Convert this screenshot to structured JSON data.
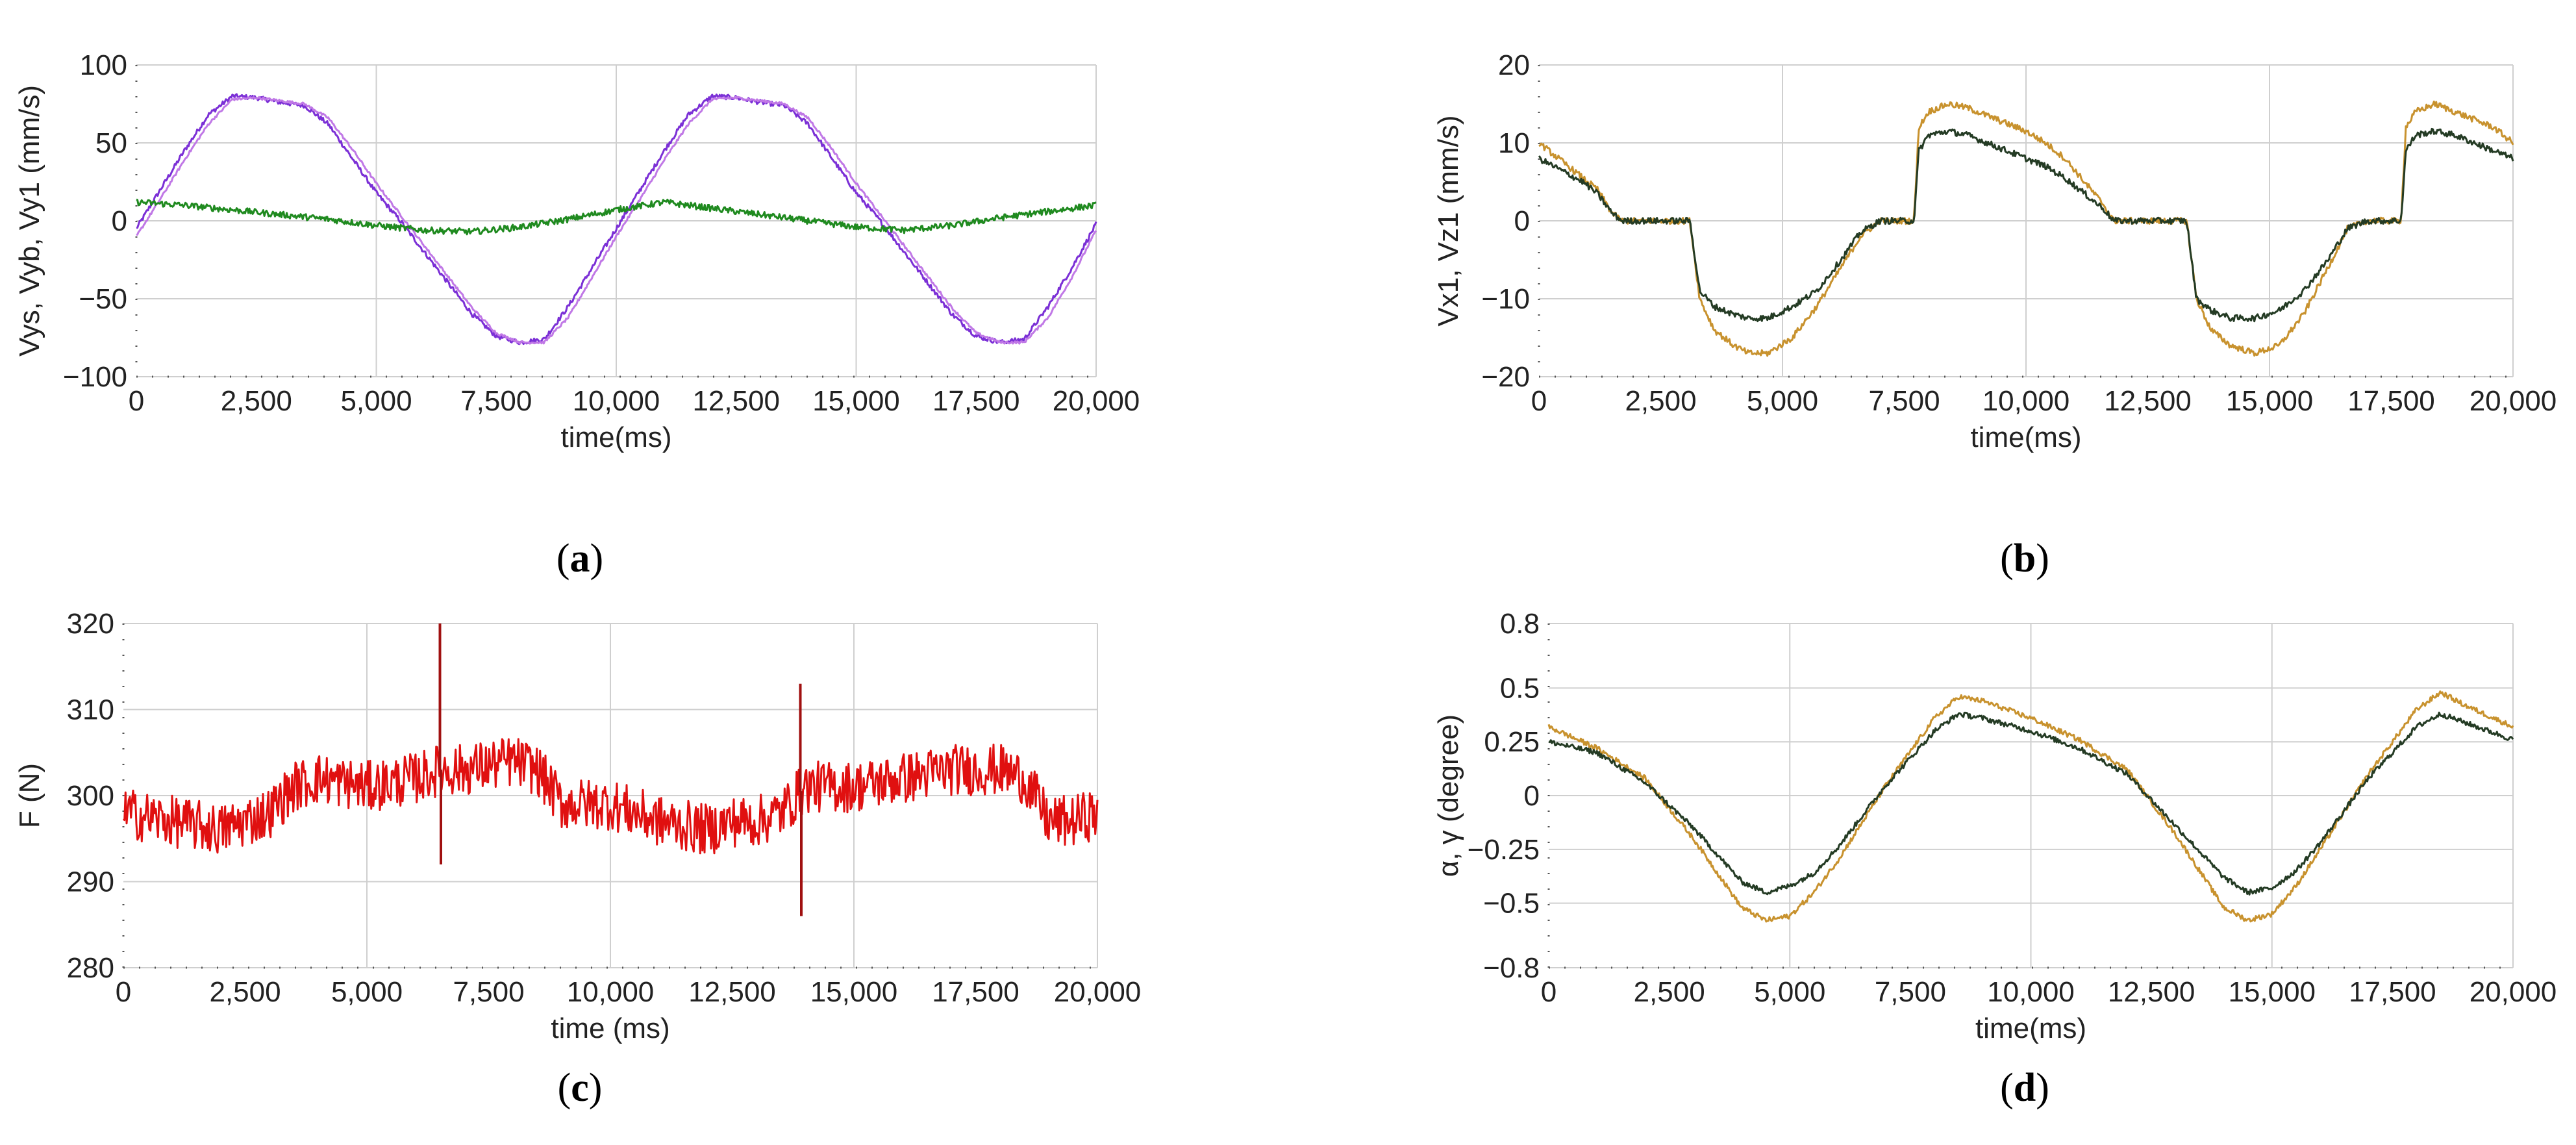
{
  "chart_data": [
    {
      "panel": "(a)",
      "panel_letter": "a",
      "type": "line",
      "xlabel": "time(ms)",
      "ylabel": "Vys, Vyb, Vy1 (mm/s)",
      "xlim": [
        0,
        20000
      ],
      "ylim": [
        -100,
        100
      ],
      "xticks": [
        0,
        2500,
        5000,
        7500,
        10000,
        12500,
        15000,
        17500,
        20000
      ],
      "xtick_labels": [
        "0",
        "2,500",
        "5,000",
        "7,500",
        "10,000",
        "12,500",
        "15,000",
        "17,500",
        "20,000"
      ],
      "yticks": [
        -100,
        -50,
        0,
        50,
        100
      ],
      "ytick_labels": [
        "−100",
        "−50",
        "0",
        "50",
        "100"
      ],
      "grid": true,
      "series": [
        {
          "color": "#7b2fd6",
          "noise": 1.5,
          "x": [
            0,
            500,
            1000,
            1500,
            2000,
            2500,
            3000,
            3500,
            4000,
            4500,
            5000,
            5500,
            6000,
            6500,
            7000,
            7500,
            8000,
            8500,
            9000,
            9500,
            10000,
            10500,
            11000,
            11500,
            12000,
            12500,
            13000,
            13500,
            14000,
            14500,
            15000,
            15500,
            16000,
            16500,
            17000,
            17500,
            18000,
            18500,
            19000,
            19500,
            20000
          ],
          "y": [
            -5,
            20,
            45,
            68,
            80,
            79,
            76,
            74,
            62,
            40,
            18,
            0,
            -20,
            -40,
            -60,
            -74,
            -78,
            -76,
            -55,
            -30,
            -5,
            20,
            45,
            68,
            80,
            79,
            76,
            74,
            62,
            40,
            18,
            0,
            -20,
            -40,
            -60,
            -74,
            -78,
            -76,
            -55,
            -30,
            -2
          ]
        },
        {
          "color": "#c078e6",
          "noise": 0.8,
          "x": [
            0,
            500,
            1000,
            1500,
            2000,
            2500,
            3000,
            3500,
            4000,
            4500,
            5000,
            5500,
            6000,
            6500,
            7000,
            7500,
            8000,
            8500,
            9000,
            9500,
            10000,
            10500,
            11000,
            11500,
            12000,
            12500,
            13000,
            13500,
            14000,
            14500,
            15000,
            15500,
            16000,
            16500,
            17000,
            17500,
            18000,
            18500,
            19000,
            19500,
            20000
          ],
          "y": [
            -10,
            14,
            39,
            62,
            78,
            79,
            77,
            75,
            66,
            46,
            24,
            4,
            -16,
            -36,
            -56,
            -72,
            -78,
            -78,
            -62,
            -36,
            -10,
            14,
            39,
            62,
            78,
            79,
            77,
            75,
            66,
            46,
            24,
            4,
            -16,
            -36,
            -56,
            -72,
            -78,
            -78,
            -62,
            -36,
            -6
          ]
        },
        {
          "color": "#1f8a1f",
          "noise": 2.0,
          "x": [
            0,
            1000,
            2000,
            3000,
            4000,
            5000,
            6000,
            7000,
            8000,
            9000,
            10000,
            11000,
            12000,
            13000,
            14000,
            15000,
            16000,
            17000,
            18000,
            19000,
            20000
          ],
          "y": [
            12,
            10,
            7,
            4,
            1,
            -3,
            -6,
            -7,
            -4,
            1,
            7,
            12,
            8,
            4,
            0,
            -4,
            -6,
            -3,
            2,
            6,
            10
          ]
        }
      ]
    },
    {
      "panel": "(b)",
      "panel_letter": "b",
      "type": "line",
      "xlabel": "time(ms)",
      "ylabel": "Vx1, Vz1 (mm/s)",
      "xlim": [
        0,
        20000
      ],
      "ylim": [
        -20,
        20
      ],
      "xticks": [
        0,
        2500,
        5000,
        7500,
        10000,
        12500,
        15000,
        17500,
        20000
      ],
      "xtick_labels": [
        "0",
        "2,500",
        "5,000",
        "7,500",
        "10,000",
        "12,500",
        "15,000",
        "17,500",
        "20,000"
      ],
      "yticks": [
        -20,
        -10,
        0,
        10,
        20
      ],
      "ytick_labels": [
        "−20",
        "−10",
        "0",
        "10",
        "20"
      ],
      "grid": true,
      "series": [
        {
          "color": "#c8922e",
          "noise": 0.4,
          "x": [
            0,
            300,
            600,
            900,
            1200,
            1500,
            1700,
            3100,
            3300,
            3600,
            4000,
            4300,
            4700,
            5200,
            5700,
            6200,
            6600,
            7000,
            7400,
            7700,
            7800,
            8000,
            8400,
            8800,
            9200,
            9600,
            10000,
            10400,
            10800,
            11200,
            11600,
            11800,
            13300,
            13500,
            13800,
            14200,
            14700,
            15200,
            15700,
            16200,
            16600,
            17000,
            17400,
            17700,
            17800,
            18000,
            18400,
            18800,
            19200,
            19600,
            20000
          ],
          "y": [
            10,
            8.5,
            7,
            5.5,
            4,
            1,
            0,
            0,
            -10,
            -14,
            -16,
            -17,
            -17,
            -15,
            -11,
            -6,
            -2,
            0,
            0,
            0,
            12,
            14,
            15,
            14.5,
            13.5,
            12.5,
            11.5,
            10,
            8,
            5,
            2,
            0,
            0,
            -10,
            -14,
            -16,
            -17,
            -16,
            -12,
            -6,
            -1,
            0,
            0,
            0,
            12,
            14,
            15,
            14,
            13,
            12,
            10
          ]
        },
        {
          "color": "#243b24",
          "noise": 0.4,
          "x": [
            0,
            300,
            600,
            900,
            1200,
            1500,
            1700,
            3100,
            3300,
            3600,
            4000,
            4300,
            4700,
            5200,
            5700,
            6200,
            6600,
            7000,
            7400,
            7700,
            7800,
            8000,
            8400,
            8800,
            9200,
            9600,
            10000,
            10400,
            10800,
            11200,
            11600,
            11800,
            13300,
            13500,
            13800,
            14200,
            14700,
            15200,
            15700,
            16200,
            16600,
            17000,
            17400,
            17700,
            17800,
            18000,
            18400,
            18800,
            19200,
            19600,
            20000
          ],
          "y": [
            8,
            7,
            6,
            5,
            3.5,
            1,
            0,
            0,
            -9,
            -11,
            -12,
            -12.5,
            -12.5,
            -11,
            -9,
            -5,
            -1.5,
            0,
            0,
            0,
            9,
            11,
            11.5,
            11,
            10,
            9,
            8,
            7,
            5.5,
            3.5,
            1.5,
            0,
            0,
            -10,
            -11.5,
            -12.5,
            -12.5,
            -11.5,
            -9,
            -5,
            -1,
            0,
            0,
            0,
            9,
            11,
            11.5,
            11,
            10,
            9,
            8
          ]
        }
      ]
    },
    {
      "panel": "(c)",
      "panel_letter": "c",
      "type": "line",
      "xlabel": "time (ms)",
      "ylabel": "F (N)",
      "xlim": [
        0,
        20000
      ],
      "ylim": [
        280,
        320
      ],
      "xticks": [
        0,
        2500,
        5000,
        7500,
        10000,
        12500,
        15000,
        17500,
        20000
      ],
      "xtick_labels": [
        "0",
        "2,500",
        "5,000",
        "7,500",
        "10,000",
        "12,500",
        "15,000",
        "17,500",
        "20,000"
      ],
      "yticks": [
        280,
        290,
        300,
        310,
        320
      ],
      "ytick_labels": [
        "280",
        "290",
        "300",
        "310",
        "320"
      ],
      "grid": true,
      "series": [
        {
          "color": "#e01010",
          "noise": 3.0,
          "x": [
            0,
            1000,
            2000,
            3000,
            3500,
            4000,
            5000,
            6000,
            6500,
            7000,
            8000,
            8500,
            9000,
            10000,
            11000,
            12000,
            12500,
            13000,
            13500,
            14000,
            15000,
            16000,
            17000,
            18000,
            18500,
            19000,
            19500,
            20000
          ],
          "y": [
            298,
            297,
            296,
            298,
            301,
            302,
            301,
            302,
            303,
            303,
            304,
            303,
            299,
            299,
            297,
            296,
            297,
            297,
            298,
            301,
            301,
            302,
            303,
            303,
            302,
            297,
            297,
            298
          ],
          "spikes": [
            {
              "x": 6500,
              "y": 320
            },
            {
              "x": 6520,
              "y": 292
            },
            {
              "x": 13900,
              "y": 313
            },
            {
              "x": 13920,
              "y": 286
            }
          ]
        }
      ]
    },
    {
      "panel": "(d)",
      "panel_letter": "d",
      "type": "line",
      "xlabel": "time(ms)",
      "ylabel": "α, γ (degree)",
      "xlim": [
        0,
        20000
      ],
      "ylim": [
        -0.8,
        0.8
      ],
      "xticks": [
        0,
        2500,
        5000,
        7500,
        10000,
        12500,
        15000,
        17500,
        20000
      ],
      "xtick_labels": [
        "0",
        "2,500",
        "5,000",
        "7,500",
        "10,000",
        "12,500",
        "15,000",
        "17,500",
        "20,000"
      ],
      "yticks": [
        -0.8,
        -0.5,
        -0.25,
        0,
        0.25,
        0.5,
        0.8
      ],
      "ytick_labels": [
        "−0.8",
        "−0.5",
        "−0.25",
        "0",
        "0.25",
        "0.5",
        "0.8"
      ],
      "grid": true,
      "series": [
        {
          "color": "#c8922e",
          "noise": 0.012,
          "x": [
            0,
            1000,
            2000,
            3000,
            4000,
            4500,
            5000,
            5500,
            6000,
            7000,
            8000,
            8500,
            9000,
            10000,
            11000,
            12000,
            13000,
            14000,
            14500,
            15000,
            15500,
            16000,
            17000,
            18000,
            18500,
            19000,
            20000
          ],
          "y": [
            0.32,
            0.22,
            0.08,
            -0.2,
            -0.52,
            -0.58,
            -0.56,
            -0.45,
            -0.3,
            0.05,
            0.36,
            0.46,
            0.44,
            0.36,
            0.26,
            0.12,
            -0.18,
            -0.52,
            -0.58,
            -0.55,
            -0.42,
            -0.25,
            0.1,
            0.4,
            0.48,
            0.42,
            0.32
          ]
        },
        {
          "color": "#243b24",
          "noise": 0.012,
          "x": [
            0,
            1000,
            2000,
            3000,
            4000,
            4500,
            5000,
            5500,
            6000,
            7000,
            8000,
            8500,
            9000,
            10000,
            11000,
            12000,
            13000,
            14000,
            14500,
            15000,
            15500,
            16000,
            17000,
            18000,
            18500,
            19000,
            20000
          ],
          "y": [
            0.25,
            0.2,
            0.06,
            -0.15,
            -0.4,
            -0.45,
            -0.42,
            -0.36,
            -0.24,
            0.05,
            0.3,
            0.38,
            0.36,
            0.3,
            0.22,
            0.1,
            -0.14,
            -0.38,
            -0.45,
            -0.43,
            -0.35,
            -0.22,
            0.08,
            0.32,
            0.38,
            0.34,
            0.26
          ]
        }
      ]
    }
  ]
}
